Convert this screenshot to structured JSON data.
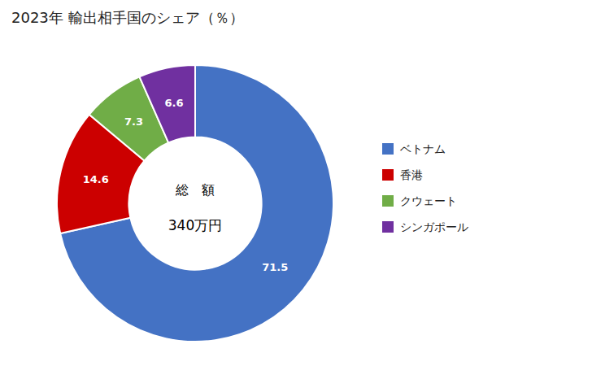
{
  "chart_data": {
    "type": "donut",
    "title": "2023年 輸出相手国のシェア（％）",
    "categories": [
      "ベトナム",
      "香港",
      "クウェート",
      "シンガポール"
    ],
    "values": [
      71.5,
      14.6,
      7.3,
      6.6
    ],
    "colors": [
      "#4472C4",
      "#CC0000",
      "#70AD47",
      "#7030A0"
    ],
    "annotations": [
      "総　額",
      "340万円"
    ],
    "data_labels": true,
    "legend": "right"
  }
}
